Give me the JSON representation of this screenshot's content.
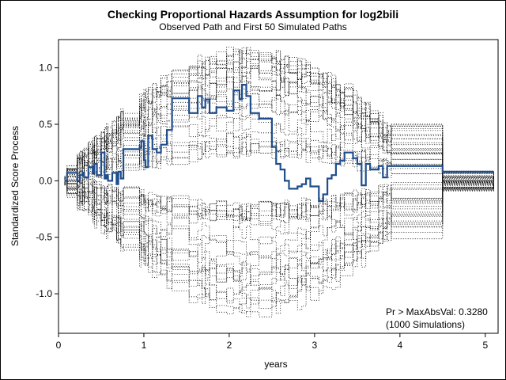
{
  "chart_data": {
    "type": "line",
    "title": "Checking Proportional Hazards Assumption for log2bili",
    "subtitle": "Observed Path and First 50 Simulated Paths",
    "xlabel": "years",
    "ylabel": "Standardized Score Process",
    "xlim": [
      0,
      5.15
    ],
    "ylim": [
      -1.35,
      1.25
    ],
    "x_ticks": [
      "0",
      "1",
      "2",
      "3",
      "4",
      "5"
    ],
    "y_ticks": [
      "-1.0",
      "-0.5",
      "0.0",
      "0.5",
      "1.0"
    ],
    "grid": false,
    "observed_color": "#1f4e8c",
    "simulated_color": "#000000",
    "simulated_style": "dotted",
    "simulated_paths_count": 50,
    "annotation": [
      "Pr > MaxAbsVal: 0.3280",
      "(1000 Simulations)"
    ],
    "series": [
      {
        "style": "step",
        "x": [
          0.07,
          0.1,
          0.22,
          0.25,
          0.28,
          0.3,
          0.35,
          0.4,
          0.42,
          0.45,
          0.5,
          0.54,
          0.56,
          0.58,
          0.63,
          0.68,
          0.7,
          0.73,
          0.76,
          0.95,
          0.97,
          1.0,
          1.02,
          1.05,
          1.1,
          1.15,
          1.2,
          1.27,
          1.33,
          1.53,
          1.63,
          1.68,
          1.72,
          1.77,
          1.85,
          1.97,
          2.05,
          2.12,
          2.15,
          2.2,
          2.25,
          2.35,
          2.5,
          2.55,
          2.6,
          2.65,
          2.7,
          2.8,
          2.85,
          2.9,
          2.95,
          3.05,
          3.1,
          3.15,
          3.2,
          3.25,
          3.3,
          3.35,
          3.45,
          3.5,
          3.55,
          3.6,
          3.65,
          3.75,
          3.8,
          3.85,
          3.9,
          4.5,
          5.1
        ],
        "y": [
          0.0,
          0.07,
          0.0,
          0.05,
          0.07,
          0.03,
          0.12,
          0.07,
          0.15,
          0.05,
          0.25,
          0.02,
          0.05,
          0.0,
          0.07,
          -0.03,
          0.08,
          0.02,
          0.28,
          0.3,
          0.35,
          0.18,
          0.12,
          0.4,
          0.28,
          0.25,
          0.32,
          0.45,
          0.73,
          0.6,
          0.75,
          0.65,
          0.72,
          0.6,
          0.65,
          0.62,
          0.8,
          0.72,
          0.85,
          0.75,
          0.6,
          0.55,
          0.3,
          0.15,
          0.1,
          0.0,
          -0.07,
          -0.05,
          -0.03,
          0.02,
          -0.05,
          -0.18,
          -0.12,
          0.02,
          0.05,
          0.15,
          0.18,
          0.25,
          0.2,
          0.15,
          -0.04,
          0.15,
          0.1,
          0.13,
          0.03,
          0.13,
          0.13,
          0.08,
          0.08
        ]
      }
    ]
  }
}
